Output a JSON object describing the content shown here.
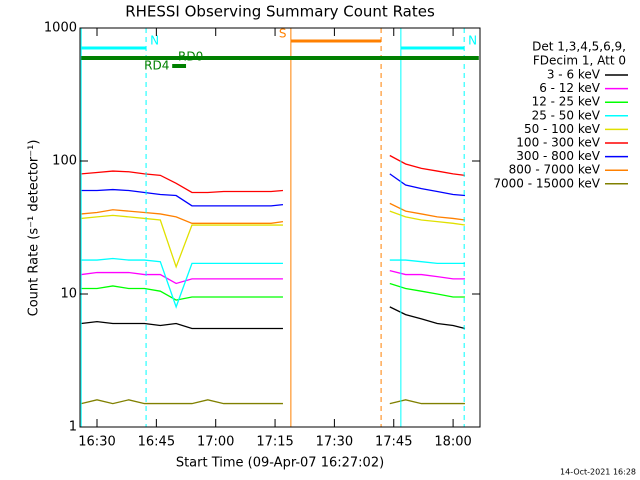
{
  "chart_data": {
    "type": "line",
    "title": "RHESSI Observing Summary Count Rates",
    "x_label": "Start Time (09-Apr-07 16:27:02)",
    "y_label": "Count Rate (s⁻¹ detector⁻¹)",
    "footer": "14-Oct-2021 16:28",
    "legend_header": [
      "Det 1,3,4,5,6,9,",
      "FDecim 1, Att 0"
    ],
    "log_y": true,
    "xlim": [
      985.7,
      1086.8
    ],
    "ylim": [
      1,
      1000
    ],
    "xticks": [
      {
        "value": 990,
        "label": "16:30"
      },
      {
        "value": 1005,
        "label": "16:45"
      },
      {
        "value": 1020,
        "label": "17:00"
      },
      {
        "value": 1035,
        "label": "17:15"
      },
      {
        "value": 1050,
        "label": "17:30"
      },
      {
        "value": 1065,
        "label": "17:45"
      },
      {
        "value": 1080,
        "label": "18:00"
      }
    ],
    "yticks": [
      1,
      10,
      100,
      1000
    ],
    "x": [
      986,
      990,
      994,
      998,
      1002,
      1006,
      1010,
      1014,
      1018,
      1022,
      1026,
      1030,
      1034,
      1037,
      1050,
      1064,
      1068,
      1072,
      1076,
      1080,
      1083
    ],
    "series": [
      {
        "name": "3 - 6 keV",
        "color": "#000000",
        "values": [
          6,
          6.2,
          6,
          6,
          6,
          5.8,
          6,
          5.5,
          5.5,
          5.5,
          5.5,
          5.5,
          5.5,
          5.5,
          null,
          8,
          7,
          6.5,
          6,
          5.8,
          5.5
        ]
      },
      {
        "name": "6 - 12 keV",
        "color": "#ff00ff",
        "values": [
          14,
          14.5,
          14.5,
          14.5,
          14,
          14,
          12,
          13,
          13,
          13,
          13,
          13,
          13,
          13,
          null,
          15,
          14,
          14,
          13.5,
          13,
          13
        ]
      },
      {
        "name": "12 - 25 keV",
        "color": "#00ff00",
        "values": [
          11,
          11,
          11.5,
          11,
          11,
          10.5,
          9,
          9.5,
          9.5,
          9.5,
          9.5,
          9.5,
          9.5,
          9.5,
          null,
          12,
          11,
          10.5,
          10,
          9.5,
          9.5
        ]
      },
      {
        "name": "25 - 50 keV",
        "color": "#00ffff",
        "values": [
          18,
          18,
          18.5,
          18,
          18,
          17.5,
          8,
          17,
          17,
          17,
          17,
          17,
          17,
          17,
          null,
          18,
          18,
          17.5,
          17,
          17,
          17
        ]
      },
      {
        "name": "50 - 100 keV",
        "color": "#e0e000",
        "values": [
          37,
          38,
          39,
          38,
          37,
          36,
          16,
          33,
          33,
          33,
          33,
          33,
          33,
          33,
          null,
          42,
          38,
          36,
          35,
          34,
          33
        ]
      },
      {
        "name": "100 - 300 keV",
        "color": "#ff0000",
        "values": [
          80,
          82,
          84,
          83,
          80,
          78,
          68,
          58,
          58,
          59,
          59,
          59,
          59,
          60,
          null,
          110,
          95,
          88,
          84,
          80,
          78
        ]
      },
      {
        "name": "300 - 800 keV",
        "color": "#0000ff",
        "values": [
          60,
          60,
          61,
          60,
          58,
          56,
          55,
          46,
          46,
          46,
          46,
          46,
          46,
          47,
          null,
          80,
          66,
          62,
          59,
          56,
          55
        ]
      },
      {
        "name": "800 - 7000 keV",
        "color": "#ff8000",
        "values": [
          40,
          41,
          43,
          42,
          41,
          40,
          38,
          34,
          34,
          34,
          34,
          34,
          34,
          35,
          null,
          48,
          42,
          40,
          38,
          37,
          36
        ]
      },
      {
        "name": "7000 - 15000 keV",
        "color": "#808000",
        "values": [
          1.5,
          1.6,
          1.5,
          1.6,
          1.5,
          1.5,
          1.5,
          1.5,
          1.6,
          1.5,
          1.5,
          1.5,
          1.5,
          1.5,
          null,
          1.5,
          1.6,
          1.5,
          1.5,
          1.5,
          1.5
        ]
      }
    ],
    "flags": [
      {
        "label": "N",
        "color": "#00ffff",
        "start": 986,
        "end": 1002.4,
        "bounds": true
      },
      {
        "label": "N",
        "color": "#00ffff",
        "start": 1066.8,
        "end": 1082.8,
        "bounds": true
      },
      {
        "label": "S",
        "color": "#ff8000",
        "start": 1039,
        "end": 1061.8,
        "bounds": true
      },
      {
        "label": "RD0",
        "color": "#008000",
        "start": 986,
        "end": 1086.5,
        "bounds": false
      },
      {
        "label": "RD4",
        "color": "#008000",
        "start": 1009,
        "end": 1012.5,
        "bounds": false
      }
    ]
  }
}
